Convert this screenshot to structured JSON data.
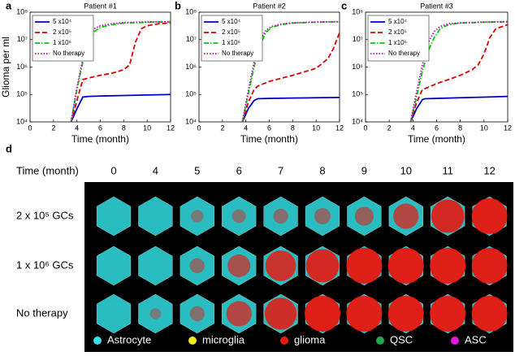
{
  "chart_data": [
    {
      "type": "line",
      "panel_label": "a",
      "title": "Patient #1",
      "xlabel": "Time (month)",
      "ylabel": "Glioma per ml",
      "xlim": [
        0,
        12
      ],
      "ylim": [
        10000,
        100000000
      ],
      "yscale": "log",
      "xticks": [
        0,
        2,
        4,
        6,
        8,
        10,
        12
      ],
      "yticks": [
        {
          "value": 10000,
          "label": "10⁴"
        },
        {
          "value": 100000,
          "label": "10⁵"
        },
        {
          "value": 1000000,
          "label": "10⁶"
        },
        {
          "value": 10000000,
          "label": "10⁷"
        },
        {
          "value": 100000000,
          "label": "10⁸"
        }
      ],
      "legend": "upper left",
      "series": [
        {
          "name": "5 x10⁴",
          "color": "#0000cc",
          "linestyle": "solid",
          "x": [
            3.5,
            4,
            4.5,
            5,
            6,
            8,
            10,
            12
          ],
          "values": [
            10000,
            30000,
            80000,
            85000,
            88000,
            92000,
            96000,
            100000
          ]
        },
        {
          "name": "2 x10⁵",
          "color": "#dd0000",
          "linestyle": "dashed",
          "x": [
            3.5,
            4,
            4.5,
            5,
            6,
            7,
            8,
            8.5,
            9,
            9.5,
            10,
            11,
            12
          ],
          "values": [
            10000,
            60000,
            350000,
            400000,
            500000,
            600000,
            800000,
            1200000,
            8000000,
            25000000,
            32000000,
            38000000,
            40000000
          ]
        },
        {
          "name": "1 x10⁶",
          "color": "#00cc00",
          "linestyle": "dashdot",
          "x": [
            3.5,
            4,
            4.5,
            5,
            5.5,
            6,
            7,
            8,
            10,
            12
          ],
          "values": [
            10000,
            150000,
            1500000,
            8000000,
            20000000,
            28000000,
            35000000,
            40000000,
            43000000,
            45000000
          ]
        },
        {
          "name": "No therapy",
          "color": "#cc00cc",
          "linestyle": "dotted",
          "x": [
            3.5,
            4,
            4.5,
            5,
            5.5,
            6,
            7,
            8,
            10,
            12
          ],
          "values": [
            10000,
            180000,
            2000000,
            12000000,
            25000000,
            32000000,
            38000000,
            42000000,
            44000000,
            45000000
          ]
        }
      ]
    },
    {
      "type": "line",
      "panel_label": "b",
      "title": "Patient #2",
      "xlabel": "Time (month)",
      "xlim": [
        0,
        12
      ],
      "ylim": [
        10000,
        100000000
      ],
      "yscale": "log",
      "xticks": [
        0,
        2,
        4,
        6,
        8,
        10,
        12
      ],
      "yticks": [
        {
          "value": 10000,
          "label": "10⁴"
        },
        {
          "value": 100000,
          "label": "10⁵"
        },
        {
          "value": 1000000,
          "label": "10⁶"
        },
        {
          "value": 10000000,
          "label": "10⁷"
        },
        {
          "value": 100000000,
          "label": "10⁸"
        }
      ],
      "legend": "upper left",
      "series": [
        {
          "name": "5 x10⁴",
          "color": "#0000cc",
          "linestyle": "solid",
          "x": [
            3.7,
            4.2,
            4.7,
            5,
            6,
            8,
            10,
            12
          ],
          "values": [
            10000,
            30000,
            60000,
            70000,
            72000,
            74000,
            76000,
            78000
          ]
        },
        {
          "name": "2 x10⁵",
          "color": "#dd0000",
          "linestyle": "dashed",
          "x": [
            3.7,
            4.2,
            4.7,
            5,
            6,
            8,
            10,
            11,
            11.5,
            12
          ],
          "values": [
            10000,
            50000,
            150000,
            200000,
            300000,
            500000,
            900000,
            2000000,
            5000000,
            18000000
          ]
        },
        {
          "name": "1 x10⁶",
          "color": "#00cc00",
          "linestyle": "dashdot",
          "x": [
            3.7,
            4.2,
            4.7,
            5.2,
            5.7,
            6.2,
            7,
            8,
            10,
            12
          ],
          "values": [
            10000,
            100000,
            1000000,
            6000000,
            18000000,
            28000000,
            35000000,
            40000000,
            43000000,
            45000000
          ]
        },
        {
          "name": "No therapy",
          "color": "#cc00cc",
          "linestyle": "dotted",
          "x": [
            3.7,
            4.2,
            4.7,
            5.2,
            5.7,
            6.2,
            7,
            8,
            10,
            12
          ],
          "values": [
            10000,
            130000,
            1500000,
            9000000,
            22000000,
            30000000,
            37000000,
            41000000,
            44000000,
            45000000
          ]
        }
      ]
    },
    {
      "type": "line",
      "panel_label": "c",
      "title": "Patient #3",
      "xlabel": "Time (month)",
      "xlim": [
        0,
        12
      ],
      "ylim": [
        10000,
        100000000
      ],
      "yscale": "log",
      "xticks": [
        0,
        2,
        4,
        6,
        8,
        10,
        12
      ],
      "yticks": [
        {
          "value": 10000,
          "label": "10⁴"
        },
        {
          "value": 100000,
          "label": "10⁵"
        },
        {
          "value": 1000000,
          "label": "10⁶"
        },
        {
          "value": 10000000,
          "label": "10⁷"
        },
        {
          "value": 100000000,
          "label": "10⁸"
        }
      ],
      "legend": "upper left",
      "series": [
        {
          "name": "5 x10⁴",
          "color": "#0000cc",
          "linestyle": "solid",
          "x": [
            3.8,
            4.3,
            4.8,
            5,
            6,
            8,
            10,
            12
          ],
          "values": [
            10000,
            30000,
            65000,
            70000,
            72000,
            76000,
            80000,
            85000
          ]
        },
        {
          "name": "2 x10⁵",
          "color": "#dd0000",
          "linestyle": "dashed",
          "x": [
            3.8,
            4.3,
            4.8,
            5.5,
            6,
            7,
            8,
            9,
            9.5,
            10,
            10.5,
            11,
            12
          ],
          "values": [
            10000,
            50000,
            150000,
            200000,
            250000,
            350000,
            500000,
            800000,
            1200000,
            3000000,
            12000000,
            25000000,
            35000000
          ]
        },
        {
          "name": "1 x10⁶",
          "color": "#00cc00",
          "linestyle": "dashdot",
          "x": [
            3.8,
            4.3,
            4.8,
            5.3,
            5.8,
            6.3,
            7,
            8,
            10,
            12
          ],
          "values": [
            10000,
            80000,
            700000,
            4000000,
            12000000,
            25000000,
            35000000,
            40000000,
            43000000,
            45000000
          ]
        },
        {
          "name": "No therapy",
          "color": "#cc00cc",
          "linestyle": "dotted",
          "x": [
            3.8,
            4.3,
            4.8,
            5.3,
            5.8,
            6.3,
            7,
            8,
            10,
            12
          ],
          "values": [
            10000,
            120000,
            1200000,
            8000000,
            20000000,
            30000000,
            38000000,
            41000000,
            44000000,
            45000000
          ]
        }
      ]
    }
  ],
  "panel_d": {
    "panel_label": "d",
    "header": "Time (month)",
    "times": [
      0,
      4,
      5,
      6,
      7,
      8,
      9,
      10,
      11,
      12
    ],
    "rows": [
      "2 x 10⁵ GCs",
      "1 x 10⁶ GCs",
      "No therapy"
    ],
    "legend": [
      {
        "name": "Astrocyte",
        "color": "#33e0e6"
      },
      {
        "name": "microglia",
        "color": "#f2e81a"
      },
      {
        "name": "glioma",
        "color": "#ee1a10"
      },
      {
        "name": "QSC",
        "color": "#1fa84a"
      },
      {
        "name": "ASC",
        "color": "#e01ae0"
      }
    ]
  }
}
